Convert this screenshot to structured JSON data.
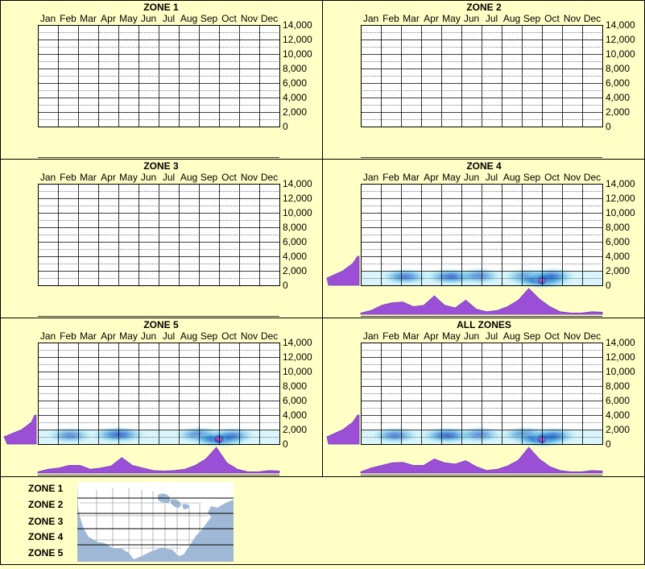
{
  "months": [
    "Jan",
    "Feb",
    "Mar",
    "Apr",
    "May",
    "Jun",
    "Jul",
    "Aug",
    "Sep",
    "Oct",
    "Nov",
    "Dec"
  ],
  "y_ticks": [
    "14,000",
    "12,000",
    "10,000",
    "8,000",
    "6,000",
    "4,000",
    "2,000",
    "0"
  ],
  "chart_data": [
    {
      "type": "heatmap",
      "title": "ZONE 1",
      "xlabel": "",
      "ylabel": "",
      "x_categories": [
        "Jan",
        "Feb",
        "Mar",
        "Apr",
        "May",
        "Jun",
        "Jul",
        "Aug",
        "Sep",
        "Oct",
        "Nov",
        "Dec"
      ],
      "ylim": [
        0,
        14000
      ],
      "hotspots": []
    },
    {
      "type": "heatmap",
      "title": "ZONE 2",
      "xlabel": "",
      "ylabel": "",
      "x_categories": [
        "Jan",
        "Feb",
        "Mar",
        "Apr",
        "May",
        "Jun",
        "Jul",
        "Aug",
        "Sep",
        "Oct",
        "Nov",
        "Dec"
      ],
      "ylim": [
        0,
        14000
      ],
      "hotspots": []
    },
    {
      "type": "heatmap",
      "title": "ZONE 3",
      "xlabel": "",
      "ylabel": "",
      "x_categories": [
        "Jan",
        "Feb",
        "Mar",
        "Apr",
        "May",
        "Jun",
        "Jul",
        "Aug",
        "Sep",
        "Oct",
        "Nov",
        "Dec"
      ],
      "ylim": [
        0,
        14000
      ],
      "hotspots": []
    },
    {
      "type": "heatmap",
      "title": "ZONE 4",
      "xlabel": "",
      "ylabel": "",
      "x_categories": [
        "Jan",
        "Feb",
        "Mar",
        "Apr",
        "May",
        "Jun",
        "Jul",
        "Aug",
        "Sep",
        "Oct",
        "Nov",
        "Dec"
      ],
      "ylim": [
        0,
        14000
      ],
      "hotspots": [
        {
          "month": 2.2,
          "elev": 1200,
          "intensity": 0.6
        },
        {
          "month": 4.5,
          "elev": 1200,
          "intensity": 0.75
        },
        {
          "month": 5.9,
          "elev": 1300,
          "intensity": 0.45
        },
        {
          "month": 8.3,
          "elev": 1200,
          "intensity": 0.6
        },
        {
          "month": 9.0,
          "elev": 700,
          "intensity": 1.0
        },
        {
          "month": 9.5,
          "elev": 1300,
          "intensity": 0.55
        }
      ],
      "month_profile": [
        0.05,
        0.15,
        0.35,
        0.45,
        0.48,
        0.3,
        0.35,
        0.72,
        0.35,
        0.25,
        0.55,
        0.2,
        0.1,
        0.15,
        0.3,
        0.55,
        1.0,
        0.6,
        0.3,
        0.1,
        0.05,
        0.05,
        0.1,
        0.08
      ],
      "elevation_profile": [
        {
          "elev": 0,
          "value": 0.95
        },
        {
          "elev": 1000,
          "value": 1.0
        },
        {
          "elev": 2000,
          "value": 0.5
        },
        {
          "elev": 3000,
          "value": 0.2
        },
        {
          "elev": 4000,
          "value": 0.05
        }
      ]
    },
    {
      "type": "heatmap",
      "title": "ZONE 5",
      "xlabel": "",
      "ylabel": "",
      "x_categories": [
        "Jan",
        "Feb",
        "Mar",
        "Apr",
        "May",
        "Jun",
        "Jul",
        "Aug",
        "Sep",
        "Oct",
        "Nov",
        "Dec"
      ],
      "ylim": [
        0,
        14000
      ],
      "hotspots": [
        {
          "month": 1.6,
          "elev": 1200,
          "intensity": 0.45
        },
        {
          "month": 4.0,
          "elev": 1300,
          "intensity": 0.8
        },
        {
          "month": 8.0,
          "elev": 1300,
          "intensity": 0.55
        },
        {
          "month": 9.0,
          "elev": 700,
          "intensity": 1.0
        },
        {
          "month": 9.7,
          "elev": 1200,
          "intensity": 0.4
        }
      ],
      "month_profile": [
        0.05,
        0.15,
        0.2,
        0.3,
        0.3,
        0.15,
        0.2,
        0.28,
        0.6,
        0.3,
        0.2,
        0.1,
        0.08,
        0.1,
        0.15,
        0.3,
        0.55,
        1.0,
        0.4,
        0.15,
        0.05,
        0.05,
        0.1,
        0.08
      ],
      "elevation_profile": [
        {
          "elev": 0,
          "value": 0.9
        },
        {
          "elev": 1000,
          "value": 1.0
        },
        {
          "elev": 2000,
          "value": 0.45
        },
        {
          "elev": 3000,
          "value": 0.15
        },
        {
          "elev": 4000,
          "value": 0.05
        }
      ]
    },
    {
      "type": "heatmap",
      "title": "ALL ZONES",
      "xlabel": "",
      "ylabel": "",
      "x_categories": [
        "Jan",
        "Feb",
        "Mar",
        "Apr",
        "May",
        "Jun",
        "Jul",
        "Aug",
        "Sep",
        "Oct",
        "Nov",
        "Dec"
      ],
      "ylim": [
        0,
        14000
      ],
      "hotspots": [
        {
          "month": 1.7,
          "elev": 1200,
          "intensity": 0.55
        },
        {
          "month": 4.3,
          "elev": 1200,
          "intensity": 0.8
        },
        {
          "month": 5.9,
          "elev": 1300,
          "intensity": 0.45
        },
        {
          "month": 8.2,
          "elev": 1300,
          "intensity": 0.6
        },
        {
          "month": 9.0,
          "elev": 700,
          "intensity": 1.0
        },
        {
          "month": 9.6,
          "elev": 1200,
          "intensity": 0.5
        }
      ],
      "month_profile": [
        0.05,
        0.2,
        0.3,
        0.4,
        0.42,
        0.3,
        0.3,
        0.55,
        0.4,
        0.35,
        0.48,
        0.25,
        0.1,
        0.15,
        0.28,
        0.5,
        1.0,
        0.55,
        0.25,
        0.1,
        0.05,
        0.05,
        0.1,
        0.08
      ],
      "elevation_profile": [
        {
          "elev": 0,
          "value": 0.95
        },
        {
          "elev": 1000,
          "value": 1.0
        },
        {
          "elev": 2000,
          "value": 0.5
        },
        {
          "elev": 3000,
          "value": 0.2
        },
        {
          "elev": 4000,
          "value": 0.05
        }
      ]
    }
  ],
  "legend": {
    "zones": [
      "ZONE 1",
      "ZONE 2",
      "ZONE 3",
      "ZONE 4",
      "ZONE 5"
    ]
  },
  "colors": {
    "background": "#ffffc6",
    "border": "#000000",
    "profile_fill": "#9a4fd6",
    "profile_stroke": "#7b3fbf",
    "map_water": "#9fb8d6",
    "map_land": "#ffffff"
  }
}
